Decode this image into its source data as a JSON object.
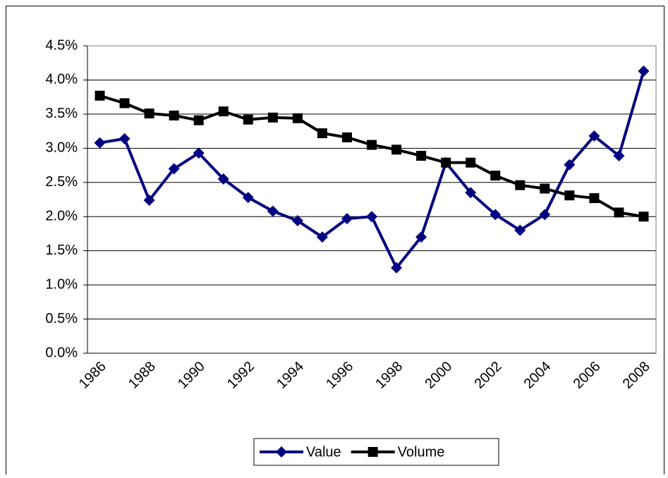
{
  "chart_data": {
    "type": "line",
    "categories": [
      "1986",
      null,
      "1988",
      null,
      "1990",
      null,
      "1992",
      null,
      "1994",
      null,
      "1996",
      null,
      "1998",
      null,
      "2000",
      null,
      "2002",
      null,
      "2004",
      null,
      "2006",
      null,
      "2008"
    ],
    "series": [
      {
        "name": "Value",
        "color": "#000080",
        "marker": "diamond",
        "values": [
          3.08,
          3.14,
          2.24,
          2.7,
          2.93,
          2.55,
          2.28,
          2.08,
          1.94,
          1.7,
          1.97,
          2.0,
          1.25,
          1.7,
          2.79,
          2.35,
          2.03,
          1.8,
          2.03,
          2.76,
          3.18,
          2.89,
          4.13
        ]
      },
      {
        "name": "Volume",
        "color": "#000000",
        "marker": "square",
        "values": [
          3.77,
          3.66,
          3.51,
          3.48,
          3.41,
          3.54,
          3.42,
          3.45,
          3.44,
          3.22,
          3.16,
          3.05,
          2.98,
          2.89,
          2.79,
          2.79,
          2.6,
          2.46,
          2.41,
          2.31,
          2.27,
          2.06,
          2.0
        ]
      }
    ],
    "ylim": [
      0,
      4.5
    ],
    "yticks": [
      {
        "value": 0,
        "label": "0.0%"
      },
      {
        "value": 0.5,
        "label": "0.5%"
      },
      {
        "value": 1,
        "label": "1.0%"
      },
      {
        "value": 1.5,
        "label": "1.5%"
      },
      {
        "value": 2,
        "label": "2.0%"
      },
      {
        "value": 2.5,
        "label": "2.5%"
      },
      {
        "value": 3,
        "label": "3.0%"
      },
      {
        "value": 3.5,
        "label": "3.5%"
      },
      {
        "value": 4,
        "label": "4.0%"
      },
      {
        "value": 4.5,
        "label": "4.5%"
      }
    ],
    "grid": true,
    "legend": "bottom"
  }
}
